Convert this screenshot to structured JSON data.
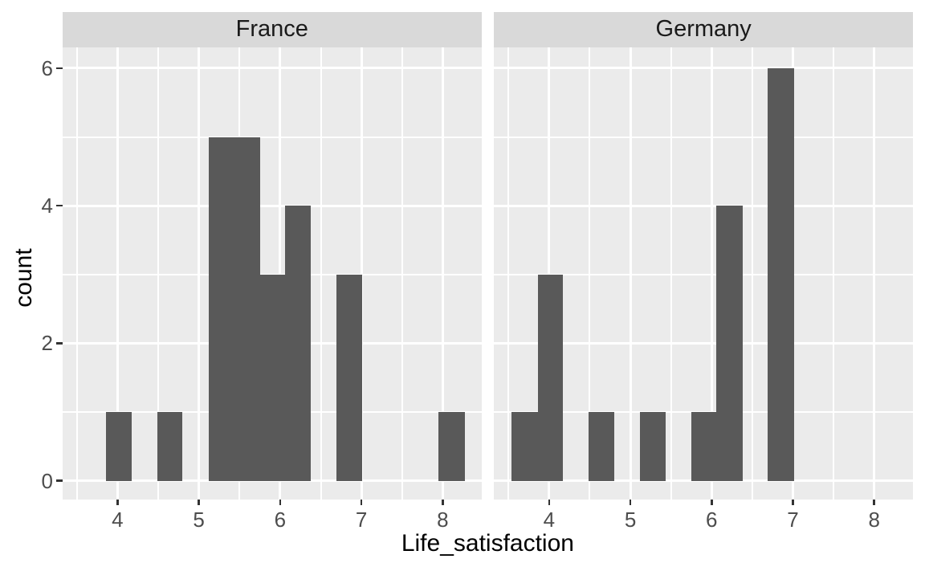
{
  "figure": {
    "background": "#FFFFFF"
  },
  "chart_data": {
    "type": "histogram",
    "library_style": "ggplot2-faceted",
    "xlabel": "Life_satisfaction",
    "ylabel": "count",
    "legend_position": "none",
    "grid": true,
    "binwidth": 0.315,
    "x_range": [
      3.32,
      8.48
    ],
    "y_range": [
      -0.27,
      6.3
    ],
    "x_ticks": [
      4,
      5,
      6,
      7,
      8
    ],
    "x_minor_ticks": [
      3.5,
      4.5,
      5.5,
      6.5,
      7.5
    ],
    "y_ticks": [
      0,
      2,
      4,
      6
    ],
    "y_minor_ticks": [
      1,
      3,
      5
    ],
    "facets": [
      {
        "label": "France",
        "bins": [
          {
            "x0": 3.86,
            "x1": 4.17,
            "count": 1
          },
          {
            "x0": 4.49,
            "x1": 4.8,
            "count": 1
          },
          {
            "x0": 5.12,
            "x1": 5.43,
            "count": 5
          },
          {
            "x0": 5.43,
            "x1": 5.75,
            "count": 5
          },
          {
            "x0": 5.75,
            "x1": 6.06,
            "count": 3
          },
          {
            "x0": 6.06,
            "x1": 6.38,
            "count": 4
          },
          {
            "x0": 6.69,
            "x1": 7.01,
            "count": 3
          },
          {
            "x0": 7.95,
            "x1": 8.27,
            "count": 1
          }
        ]
      },
      {
        "label": "Germany",
        "bins": [
          {
            "x0": 3.54,
            "x1": 3.86,
            "count": 1
          },
          {
            "x0": 3.86,
            "x1": 4.17,
            "count": 3
          },
          {
            "x0": 4.49,
            "x1": 4.8,
            "count": 1
          },
          {
            "x0": 5.12,
            "x1": 5.43,
            "count": 1
          },
          {
            "x0": 5.75,
            "x1": 6.06,
            "count": 1
          },
          {
            "x0": 6.06,
            "x1": 6.38,
            "count": 4
          },
          {
            "x0": 6.69,
            "x1": 7.01,
            "count": 6
          }
        ]
      }
    ],
    "colors": {
      "bar_fill": "#595959",
      "panel_background": "#EBEBEB",
      "strip_background": "#D9D9D9",
      "gridline": "#FFFFFF",
      "tick_label": "#4D4D4D",
      "axis_title": "#000000",
      "strip_text": "#1A1A1A",
      "tick_mark": "#333333"
    }
  }
}
